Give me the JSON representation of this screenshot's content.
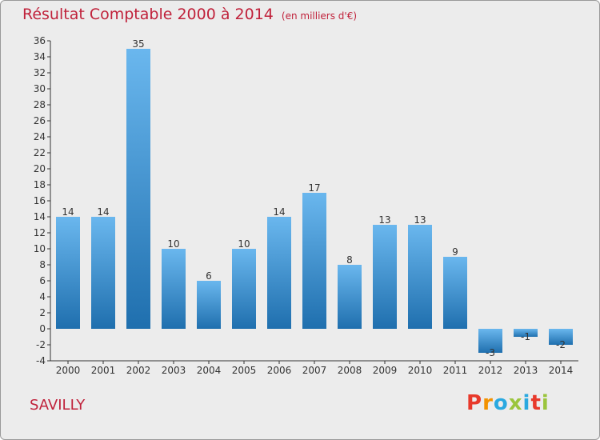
{
  "chart_data": {
    "type": "bar",
    "title": "Résultat Comptable 2000 à 2014",
    "subtitle": "(en milliers d'€)",
    "categories": [
      "2000",
      "2001",
      "2002",
      "2003",
      "2004",
      "2005",
      "2006",
      "2007",
      "2008",
      "2009",
      "2010",
      "2011",
      "2012",
      "2013",
      "2014"
    ],
    "values": [
      14,
      14,
      35,
      10,
      6,
      10,
      14,
      17,
      8,
      13,
      13,
      9,
      -3,
      -1,
      -2
    ],
    "data_labels": [
      "14",
      "14",
      "35",
      "10",
      "6",
      "10",
      "14",
      "17",
      "8",
      "13",
      "13",
      "9",
      "-3",
      "-1",
      "-2"
    ],
    "xlabel": "",
    "ylabel": "",
    "ylim": [
      -4,
      36
    ],
    "yticks": [
      36,
      34,
      32,
      30,
      28,
      26,
      24,
      22,
      20,
      18,
      16,
      14,
      12,
      10,
      8,
      6,
      4,
      2,
      0,
      -2,
      -4
    ],
    "grid": false,
    "legend": "none"
  },
  "place_name": "SAVILLY",
  "brand": {
    "logo_text": "Proxiti",
    "letters": [
      "P",
      "r",
      "o",
      "x",
      "i",
      "t",
      "i"
    ],
    "letter_colors": [
      "#e8392b",
      "#f39200",
      "#2aa9e0",
      "#9bc53d",
      "#2aa9e0",
      "#e8392b",
      "#9bc53d"
    ]
  },
  "colors": {
    "title": "#c0223b",
    "bar_top": "#6ab7ee",
    "bar_bottom": "#1f6fae",
    "axis": "#333333",
    "background": "#ececec"
  }
}
